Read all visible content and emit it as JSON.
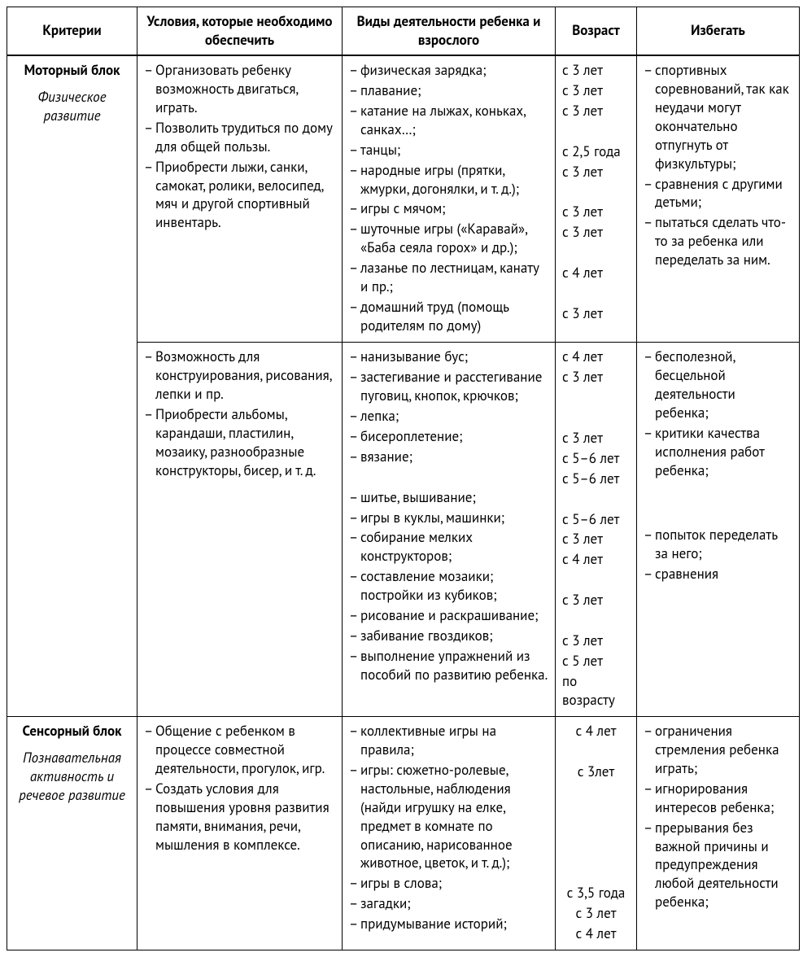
{
  "headers": {
    "criteria": "Критерии",
    "conditions": "Условия, которые необходимо обеспечить",
    "activities": "Виды деятельности ребенка и взрослого",
    "age": "Возраст",
    "avoid": "Избегать"
  },
  "rows": [
    {
      "criteria_title": "Моторный блок",
      "criteria_sub": "Физическое развитие",
      "criteria_rowspan": 2,
      "conditions": [
        "Организовать ребенку возможность двигаться, играть.",
        "Позволить трудиться по дому для общей пользы.",
        "Приобрести лыжи, санки, самокат, ролики, велосипед, мяч и другой спортивный инвентарь."
      ],
      "activities": [
        "физическая зарядка;",
        "плавание;",
        "катание на лыжах, коньках, санках…;",
        "танцы;",
        "народные игры (прятки, жмурки, догонялки, и т. д.);",
        "игры с мячом;",
        "шуточные игры («Каравай», «Баба сеяла горох» и др.);",
        "лазанье по лестницам, канату и пр.;",
        "домашний труд (помощь родителям по дому)"
      ],
      "ages": [
        "с 3 лет",
        "с 3 лет",
        "с 3 лет",
        "",
        "с 2,5 года",
        "с 3 лет",
        "",
        "с 3 лет",
        "с 3 лет",
        "",
        "с 4 лет",
        "",
        "с 3 лет"
      ],
      "avoid": [
        "спортивных соревнований, так как неудачи могут окончательно отпугнуть от физкультуры;",
        "сравнения с другими детьми;",
        "пытаться сделать что-то за ребенка или переделать за ним."
      ]
    },
    {
      "conditions": [
        "Возможность для конструирования, рисования, лепки и пр.",
        "Приобрести альбомы, карандаши, пластилин, мозаику, разнообразные конструкторы, бисер, и т. д."
      ],
      "activities": [
        "нанизывание бус;",
        "застегивание и расстегивание пуговиц, кнопок, крючков;",
        "лепка;",
        "бисероплетение;",
        "вязание;",
        "",
        "шитье, вышивание;",
        "игры в куклы, машинки;",
        "собирание мелких конструкторов;",
        "составление мозаики; постройки из кубиков;",
        "рисование и раскрашивание;",
        "забивание гвоздиков;",
        "выполнение упражнений из пособий по развитию ребенка."
      ],
      "ages": [
        "с 4 лет",
        "с 3 лет",
        "",
        "",
        "с 3 лет",
        "с 5–6 лет",
        "с 5–6 лет",
        "",
        "с 5–6 лет",
        "с 3 лет",
        "с 4 лет",
        "",
        "с 3 лет",
        "",
        "с 3 лет",
        "с 5 лет",
        "по возрасту"
      ],
      "avoid_groups": [
        [
          "бесполезной, бесцельной деятельности ребенка;",
          "критики качества исполнения работ ребенка;"
        ],
        [
          "попыток переделать за него;",
          "сравнения"
        ]
      ]
    },
    {
      "criteria_title": "Сенсорный блок",
      "criteria_sub": "Познавательная активность и речевое развитие",
      "conditions": [
        "Общение с ребенком в процессе совместной деятельности, прогулок, игр.",
        "Создать условия для повышения уровня развития памяти, внимания, речи, мышления в комплексе."
      ],
      "activities": [
        "коллективные игры на правила;",
        "игры: сюжетно-ролевые, настольные, наблюдения (найди игрушку на елке, предмет в комнате по описанию, нарисованное животное, цветок, и т. д.);",
        "игры в слова;",
        "загадки;",
        "придумывание историй;"
      ],
      "ages_center": true,
      "ages": [
        "с 4 лет",
        "",
        "с 3лет",
        "",
        "",
        "",
        "",
        "",
        "с 3,5 года",
        "с 3 лет",
        "с 4 лет"
      ],
      "avoid": [
        "ограничения стремления ребенка играть;",
        "игнорирования интересов ребенка;",
        "прерывания без важной причины и предупреждения любой деятельности ребенка;"
      ]
    }
  ]
}
